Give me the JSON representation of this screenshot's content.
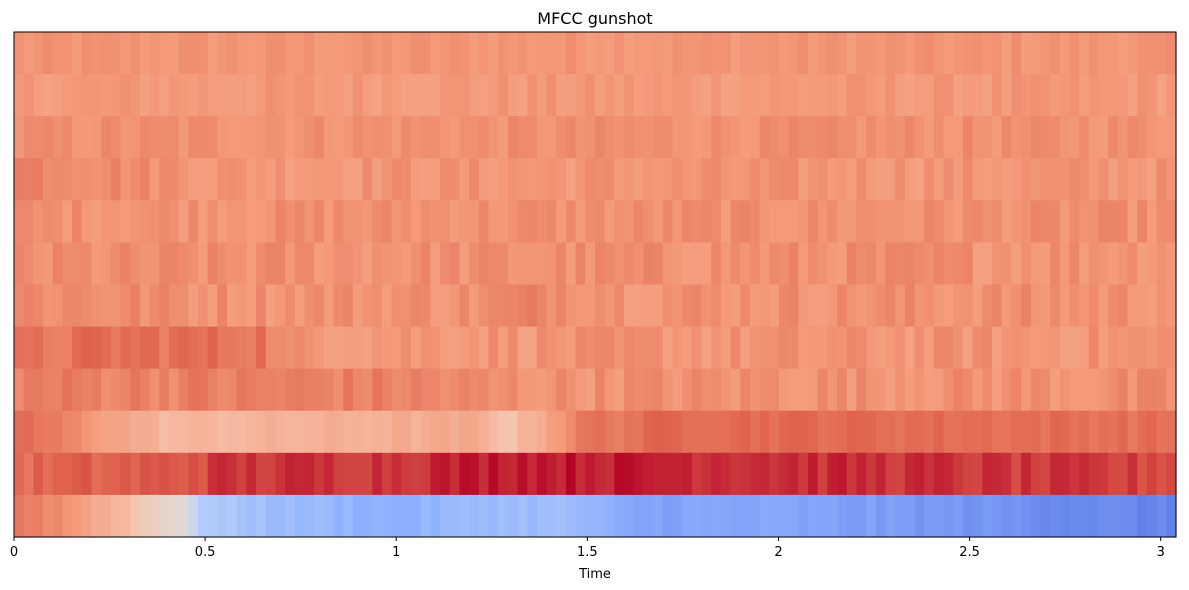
{
  "chart_data": {
    "type": "heatmap",
    "title": "MFCC gunshot",
    "xlabel": "Time",
    "ylabel": "",
    "xlim": [
      0,
      3.04
    ],
    "xticks": [
      0,
      0.5,
      1,
      1.5,
      2,
      2.5,
      3
    ],
    "xtick_labels": [
      "0",
      "0.5",
      "1",
      "1.5",
      "2",
      "2.5",
      "3"
    ],
    "colormap": "coolwarm",
    "value_range": [
      0,
      1
    ],
    "row_order": "top-to-bottom",
    "n_columns": 120,
    "rows": [
      {
        "base": 0.76,
        "var": 0.02,
        "profile": []
      },
      {
        "base": 0.75,
        "var": 0.025,
        "profile": []
      },
      {
        "base": 0.77,
        "var": 0.025,
        "profile": []
      },
      {
        "base": 0.76,
        "var": 0.03,
        "profile": [
          [
            0.0,
            0.05
          ],
          [
            0.25,
            0.03
          ],
          [
            0.55,
            0.0
          ]
        ]
      },
      {
        "base": 0.77,
        "var": 0.03,
        "profile": []
      },
      {
        "base": 0.77,
        "var": 0.035,
        "profile": []
      },
      {
        "base": 0.77,
        "var": 0.035,
        "profile": [
          [
            0.0,
            0.02
          ],
          [
            0.5,
            0.0
          ],
          [
            1.2,
            0.0
          ],
          [
            1.4,
            0.03
          ],
          [
            1.6,
            0.0
          ]
        ]
      },
      {
        "base": 0.76,
        "var": 0.035,
        "profile": [
          [
            0.0,
            0.05
          ],
          [
            0.2,
            0.08
          ],
          [
            0.65,
            0.08
          ],
          [
            0.7,
            0.0
          ]
        ]
      },
      {
        "base": 0.8,
        "var": 0.035,
        "profile": [
          [
            0.0,
            0.01
          ],
          [
            1.0,
            0.0
          ],
          [
            1.25,
            -0.03
          ],
          [
            3.04,
            -0.03
          ]
        ]
      },
      {
        "base": 0.78,
        "var": 0.02,
        "profile": [
          [
            0.0,
            0.08
          ],
          [
            0.4,
            -0.12
          ],
          [
            1.2,
            -0.08
          ],
          [
            1.3,
            -0.15
          ],
          [
            1.5,
            0.05
          ],
          [
            1.6,
            0.05
          ],
          [
            1.7,
            0.08
          ],
          [
            3.04,
            0.06
          ]
        ]
      },
      {
        "base": 0.93,
        "var": 0.03,
        "profile": [
          [
            0.0,
            -0.08
          ],
          [
            0.4,
            -0.05
          ],
          [
            0.55,
            0.0
          ],
          [
            1.0,
            0.01
          ],
          [
            1.3,
            0.05
          ],
          [
            1.5,
            0.04
          ],
          [
            2.0,
            0.02
          ],
          [
            3.04,
            -0.02
          ]
        ]
      },
      {
        "base": 0.3,
        "var": 0.02,
        "profile": [
          [
            0.0,
            0.53
          ],
          [
            0.12,
            0.48
          ],
          [
            0.3,
            0.35
          ],
          [
            0.45,
            0.2
          ],
          [
            0.5,
            0.05
          ],
          [
            0.7,
            0.0
          ],
          [
            1.0,
            -0.05
          ],
          [
            1.25,
            0.0
          ],
          [
            1.45,
            0.0
          ],
          [
            1.6,
            -0.08
          ],
          [
            2.0,
            -0.08
          ],
          [
            2.5,
            -0.12
          ],
          [
            3.04,
            -0.17
          ]
        ]
      }
    ]
  }
}
